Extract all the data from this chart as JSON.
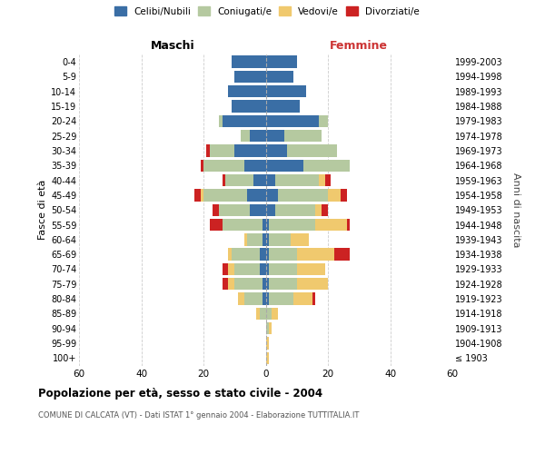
{
  "age_groups": [
    "100+",
    "95-99",
    "90-94",
    "85-89",
    "80-84",
    "75-79",
    "70-74",
    "65-69",
    "60-64",
    "55-59",
    "50-54",
    "45-49",
    "40-44",
    "35-39",
    "30-34",
    "25-29",
    "20-24",
    "15-19",
    "10-14",
    "5-9",
    "0-4"
  ],
  "birth_years": [
    "≤ 1903",
    "1904-1908",
    "1909-1913",
    "1914-1918",
    "1919-1923",
    "1924-1928",
    "1929-1933",
    "1934-1938",
    "1939-1943",
    "1944-1948",
    "1949-1953",
    "1954-1958",
    "1959-1963",
    "1964-1968",
    "1969-1973",
    "1974-1978",
    "1979-1983",
    "1984-1988",
    "1989-1993",
    "1994-1998",
    "1999-2003"
  ],
  "colors": {
    "celibi": "#3a6ea5",
    "coniugati": "#b5c9a0",
    "vedovi": "#f0c96e",
    "divorziati": "#cc2222"
  },
  "maschi": {
    "celibi": [
      0,
      0,
      0,
      0,
      1,
      1,
      2,
      2,
      1,
      1,
      5,
      6,
      4,
      7,
      10,
      5,
      14,
      11,
      12,
      10,
      11
    ],
    "coniugati": [
      0,
      0,
      0,
      2,
      6,
      9,
      8,
      9,
      5,
      13,
      10,
      14,
      9,
      13,
      8,
      3,
      1,
      0,
      0,
      0,
      0
    ],
    "vedovi": [
      0,
      0,
      0,
      1,
      2,
      2,
      2,
      1,
      1,
      0,
      0,
      1,
      0,
      0,
      0,
      0,
      0,
      0,
      0,
      0,
      0
    ],
    "divorziati": [
      0,
      0,
      0,
      0,
      0,
      2,
      2,
      0,
      0,
      4,
      2,
      2,
      1,
      1,
      1,
      0,
      0,
      0,
      0,
      0,
      0
    ]
  },
  "femmine": {
    "celibi": [
      0,
      0,
      0,
      0,
      1,
      1,
      1,
      1,
      1,
      1,
      3,
      4,
      3,
      12,
      7,
      6,
      17,
      11,
      13,
      9,
      10
    ],
    "coniugati": [
      0,
      0,
      1,
      2,
      8,
      9,
      9,
      9,
      7,
      15,
      13,
      16,
      14,
      15,
      16,
      12,
      3,
      0,
      0,
      0,
      0
    ],
    "vedovi": [
      1,
      1,
      1,
      2,
      6,
      10,
      9,
      12,
      6,
      10,
      2,
      4,
      2,
      0,
      0,
      0,
      0,
      0,
      0,
      0,
      0
    ],
    "divorziati": [
      0,
      0,
      0,
      0,
      1,
      0,
      0,
      5,
      0,
      1,
      2,
      2,
      2,
      0,
      0,
      0,
      0,
      0,
      0,
      0,
      0
    ]
  },
  "xlim": 60,
  "xticks": [
    -60,
    -40,
    -20,
    0,
    20,
    40,
    60
  ],
  "xticklabels": [
    "60",
    "40",
    "20",
    "0",
    "20",
    "40",
    "60"
  ],
  "title": "Popolazione per età, sesso e stato civile - 2004",
  "subtitle": "COMUNE DI CALCATA (VT) - Dati ISTAT 1° gennaio 2004 - Elaborazione TUTTITALIA.IT",
  "ylabel_left": "Fasce di età",
  "ylabel_right": "Anni di nascita",
  "label_maschi": "Maschi",
  "label_femmine": "Femmine",
  "legend_labels": [
    "Celibi/Nubili",
    "Coniugati/e",
    "Vedovi/e",
    "Divorziati/e"
  ],
  "background_color": "#ffffff",
  "grid_color": "#cccccc"
}
